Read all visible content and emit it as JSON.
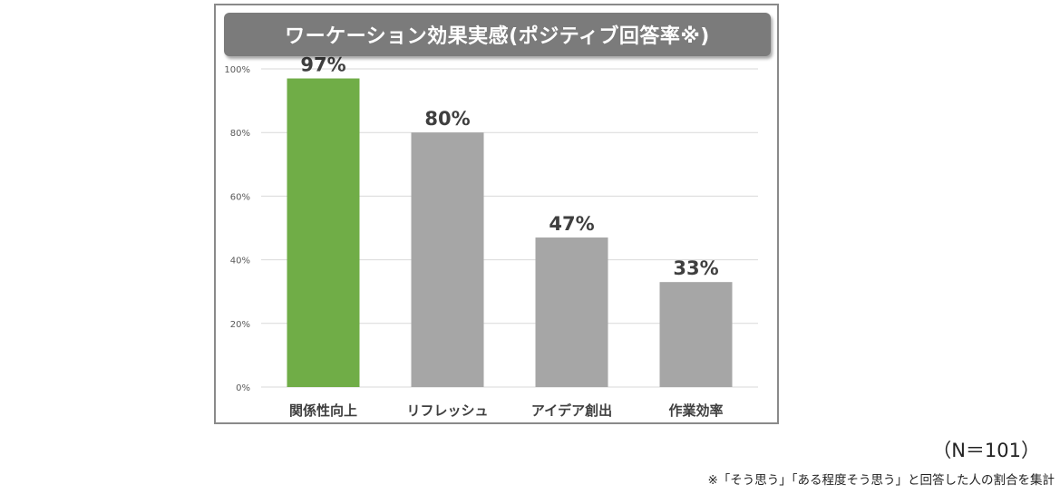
{
  "chart_title": "ワーケーション効果実感(ポジティブ回答率※)",
  "sample_size": "（N＝101）",
  "footnote": "※「そう思う」「ある程度そう思う」と回答した人の割合を集計",
  "chart_data": {
    "type": "bar",
    "title": "ワーケーション効果実感(ポジティブ回答率※)",
    "categories": [
      "関係性向上",
      "リフレッシュ",
      "アイデア創出",
      "作業効率"
    ],
    "values": [
      97,
      80,
      47,
      33
    ],
    "data_labels": [
      "97%",
      "80%",
      "47%",
      "33%"
    ],
    "bar_colors": [
      "#70ad47",
      "#a6a6a6",
      "#a6a6a6",
      "#a6a6a6"
    ],
    "ylim": [
      0,
      100
    ],
    "yticks": [
      0,
      20,
      40,
      60,
      80,
      100
    ],
    "ytick_labels": [
      "0%",
      "20%",
      "40%",
      "60%",
      "80%",
      "100%"
    ],
    "xlabel": "",
    "ylabel": "",
    "grid": true,
    "grid_color": "#d9d9d9"
  }
}
